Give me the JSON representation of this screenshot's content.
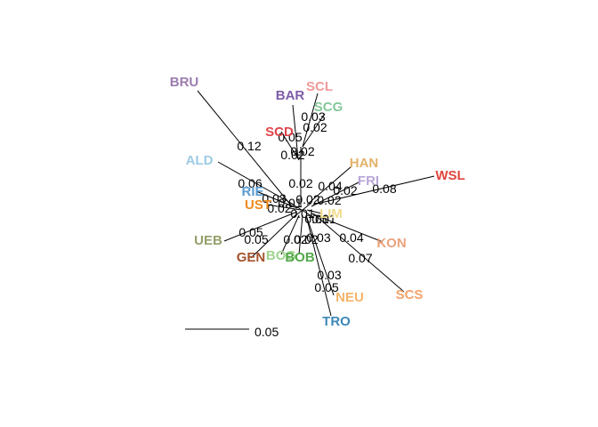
{
  "tips": [
    {
      "id": "bru",
      "name": "BRU",
      "color": "#9c7bb0"
    },
    {
      "id": "bar",
      "name": "BAR",
      "color": "#7d5ca8"
    },
    {
      "id": "scl",
      "name": "SCL",
      "color": "#ef9a9a"
    },
    {
      "id": "scg",
      "name": "SCG",
      "color": "#84c89a"
    },
    {
      "id": "scd",
      "name": "SCD",
      "color": "#e0454a"
    },
    {
      "id": "han",
      "name": "HAN",
      "color": "#e2b36a"
    },
    {
      "id": "wsl",
      "name": "WSL",
      "color": "#e0453d"
    },
    {
      "id": "fri",
      "name": "FRI",
      "color": "#b9a6d8"
    },
    {
      "id": "ald",
      "name": "ALD",
      "color": "#9dcbe4"
    },
    {
      "id": "rie",
      "name": "RIE",
      "color": "#5b9bd0"
    },
    {
      "id": "ust",
      "name": "UST",
      "color": "#f08a1c"
    },
    {
      "id": "lim",
      "name": "LIM",
      "color": "#f2dc8e"
    },
    {
      "id": "ueb",
      "name": "UEB",
      "color": "#93a06a"
    },
    {
      "id": "gen",
      "name": "GEN",
      "color": "#a3522b"
    },
    {
      "id": "bog",
      "name": "BOG",
      "color": "#9fd48f"
    },
    {
      "id": "bob",
      "name": "BOB",
      "color": "#52a94a"
    },
    {
      "id": "kon",
      "name": "KON",
      "color": "#eaa27d"
    },
    {
      "id": "scs",
      "name": "SCS",
      "color": "#f3a26a"
    },
    {
      "id": "neu",
      "name": "NEU",
      "color": "#f4b46a"
    },
    {
      "id": "tro",
      "name": "TRO",
      "color": "#3d88b8"
    }
  ],
  "branch_lengths": [
    {
      "id": "bru",
      "value": "0.12"
    },
    {
      "id": "bar",
      "value": "0.05"
    },
    {
      "id": "scl",
      "value": "0.03"
    },
    {
      "id": "scg",
      "value": "0.02"
    },
    {
      "id": "scd1",
      "value": "0.02"
    },
    {
      "id": "scd2",
      "value": "0.02"
    },
    {
      "id": "trunk",
      "value": "0.02"
    },
    {
      "id": "han",
      "value": "0.04"
    },
    {
      "id": "fri",
      "value": "0.02"
    },
    {
      "id": "wsl",
      "value": "0.08"
    },
    {
      "id": "ald",
      "value": "0.06"
    },
    {
      "id": "rie",
      "value": "0.03"
    },
    {
      "id": "ust",
      "value": "0.02"
    },
    {
      "id": "c1",
      "value": "0.01"
    },
    {
      "id": "c2",
      "value": "0.02"
    },
    {
      "id": "c3",
      "value": "0.02"
    },
    {
      "id": "c4",
      "value": "0.01"
    },
    {
      "id": "c5",
      "value": "0.01"
    },
    {
      "id": "c6",
      "value": "0.01"
    },
    {
      "id": "ueb",
      "value": "0.05"
    },
    {
      "id": "gen",
      "value": "0.05"
    },
    {
      "id": "bog",
      "value": "0.02"
    },
    {
      "id": "bob",
      "value": "0.02"
    },
    {
      "id": "bob2",
      "value": "0.03"
    },
    {
      "id": "kon",
      "value": "0.04"
    },
    {
      "id": "scs",
      "value": "0.07"
    },
    {
      "id": "neu",
      "value": "0.03"
    },
    {
      "id": "tro",
      "value": "0.05"
    }
  ],
  "scale_bar": {
    "label": "0.05"
  }
}
